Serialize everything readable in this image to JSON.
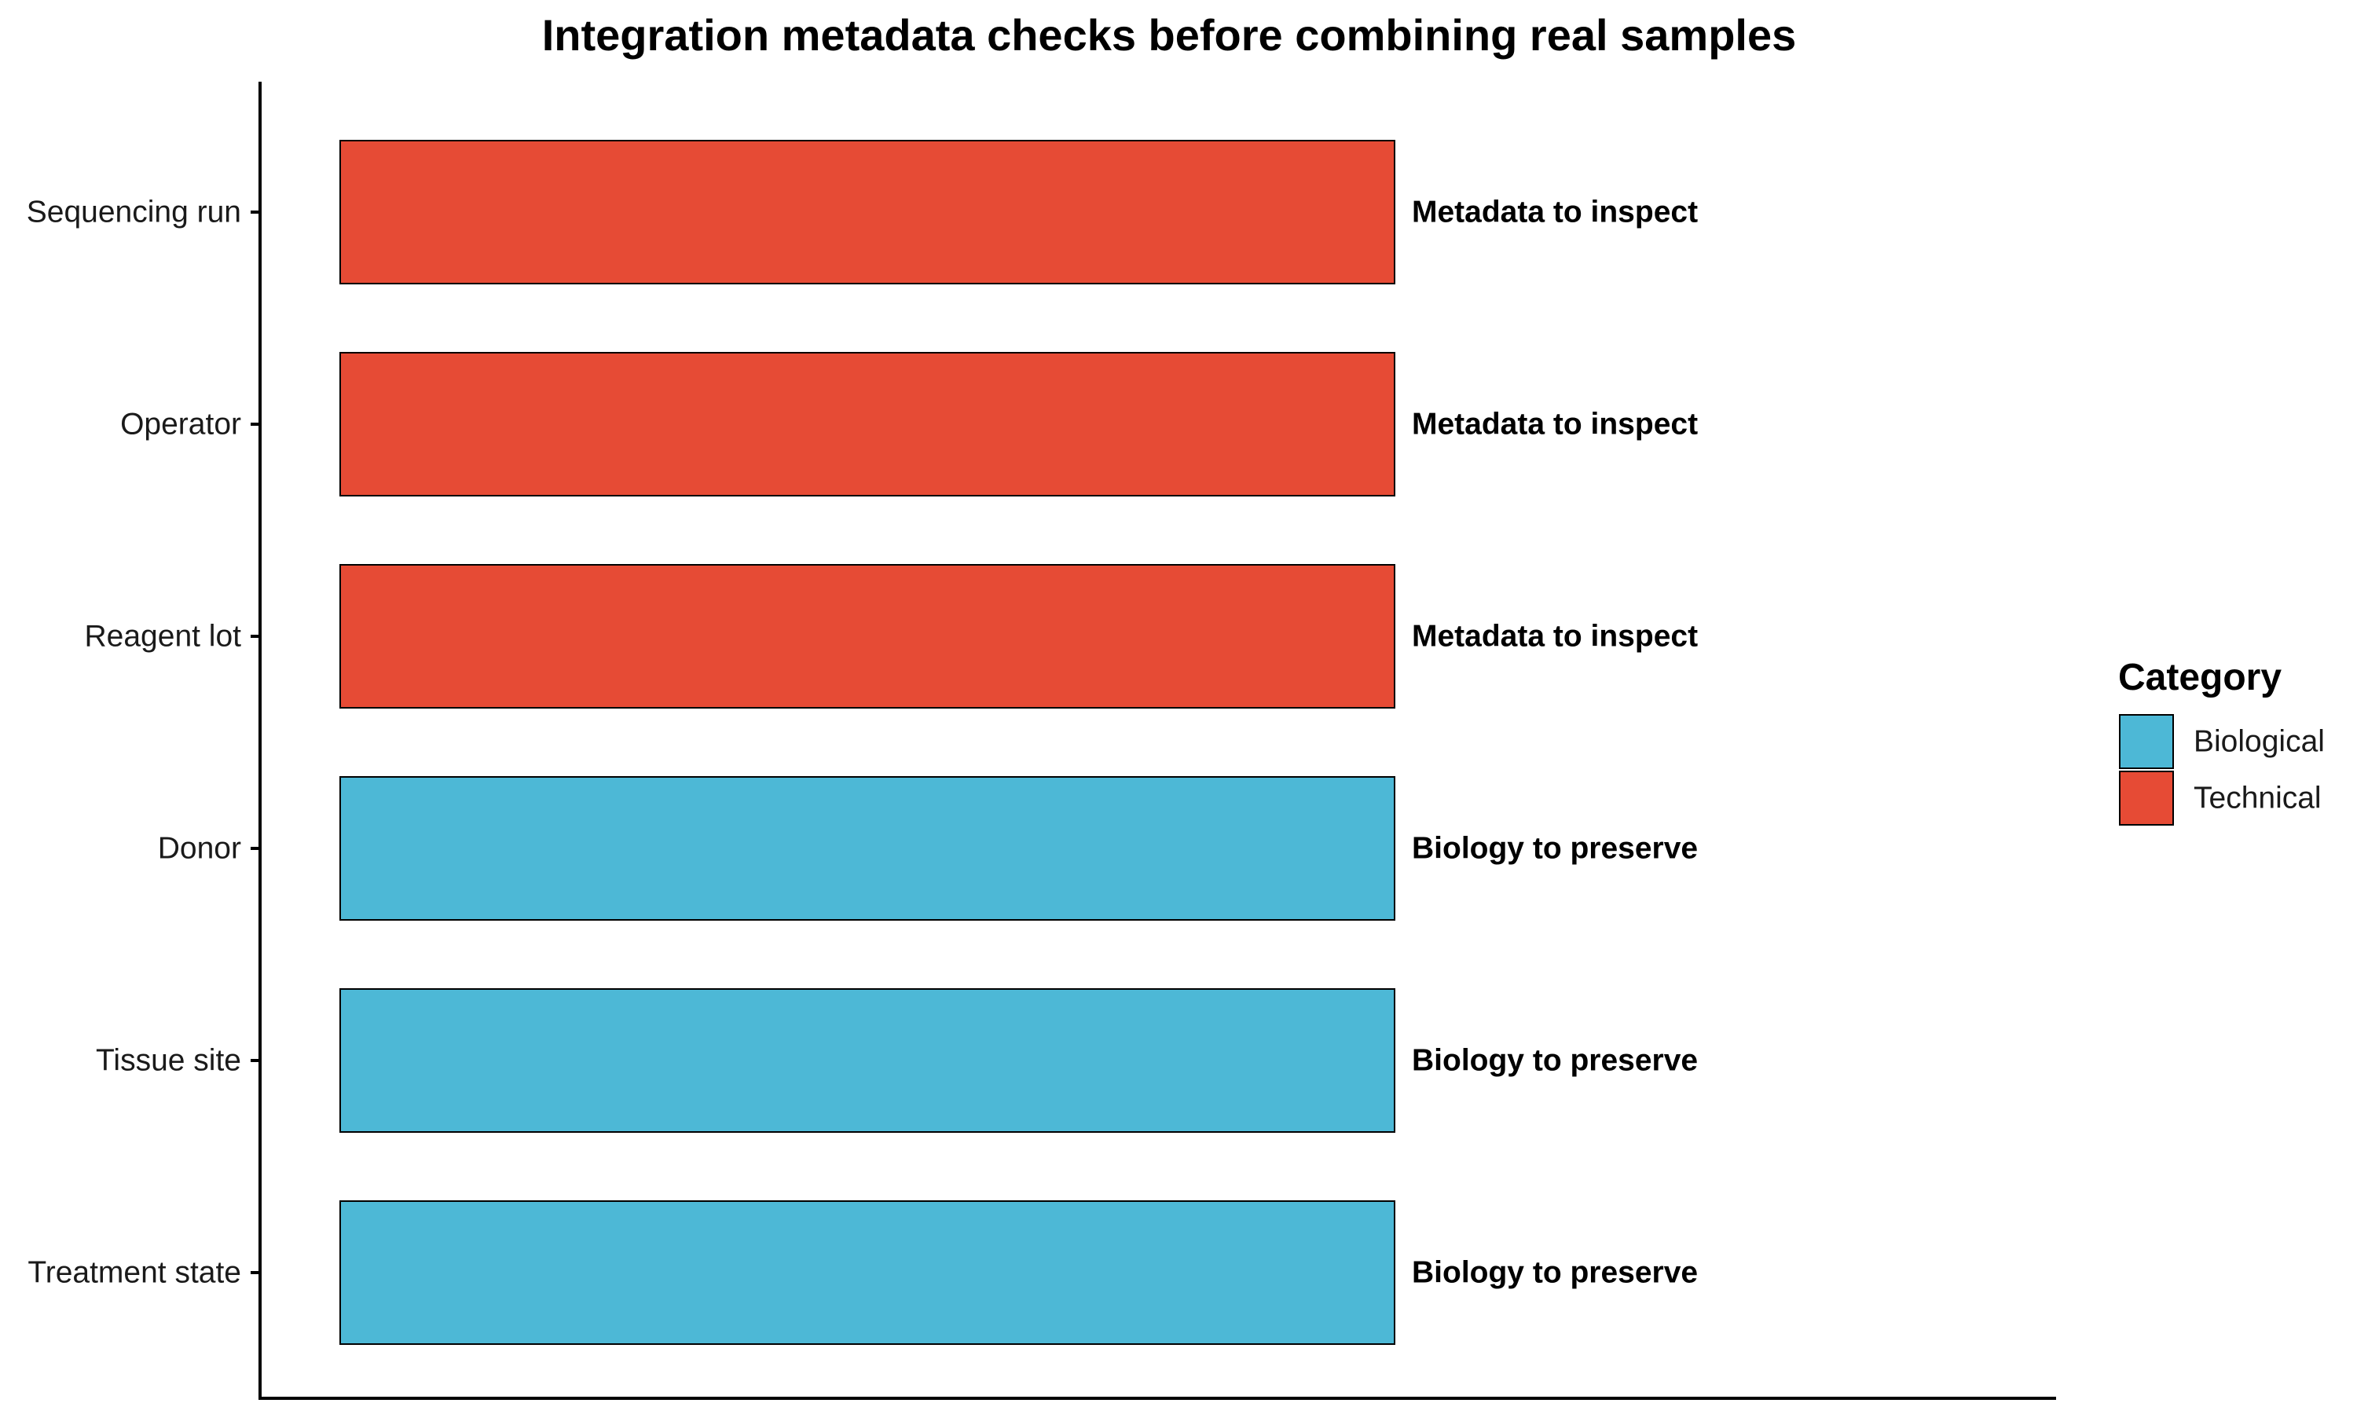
{
  "chart_data": {
    "type": "bar",
    "orientation": "horizontal",
    "title": "Integration metadata checks before combining real samples",
    "xlabel": "",
    "ylabel": "",
    "categories": [
      "Sequencing run",
      "Operator",
      "Reagent lot",
      "Donor",
      "Tissue site",
      "Treatment state"
    ],
    "values": [
      1,
      1,
      1,
      1,
      1,
      1
    ],
    "bar_categories": [
      "Technical",
      "Technical",
      "Technical",
      "Biological",
      "Biological",
      "Biological"
    ],
    "labels": [
      "Metadata to inspect",
      "Metadata to inspect",
      "Metadata to inspect",
      "Biology to preserve",
      "Biology to preserve",
      "Biology to preserve"
    ],
    "xlim": [
      0,
      1.7
    ],
    "grid": false,
    "legend": {
      "title": "Category",
      "position": "right",
      "entries": [
        {
          "name": "Biological",
          "color": "#4DB8D6"
        },
        {
          "name": "Technical",
          "color": "#E64B35"
        }
      ]
    }
  }
}
